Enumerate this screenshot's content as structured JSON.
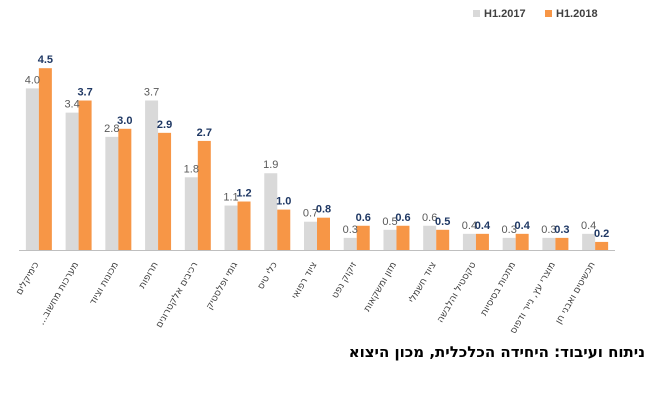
{
  "chart_data": {
    "type": "bar",
    "categories": [
      "כימיקלים",
      "מערכות מחשוב...",
      "מכונות וציוד",
      "תרופות",
      "רכיבים אלקטרונים",
      "גומי ופלסטיק",
      "כלי טיס",
      "ציוד רפואי",
      "זיקוק נפט",
      "מזון ומשקאות",
      "ציוד חשמלי",
      "טקסטיל והלבשה",
      "מתכות בסיסיות",
      "מוצרי עץ, נייר ודפוס",
      "תכשיטים ואבני חן"
    ],
    "series": [
      {
        "name": "H1.2017",
        "color": "#d9d9d9",
        "label_color": "#595959",
        "label_weight": "normal",
        "values": [
          4.0,
          3.4,
          2.8,
          3.7,
          1.8,
          1.1,
          1.9,
          0.7,
          0.3,
          0.5,
          0.6,
          0.4,
          0.3,
          0.3,
          0.4
        ]
      },
      {
        "name": "H1.2018",
        "color": "#f79646",
        "label_color": "#1f3864",
        "label_weight": "bold",
        "values": [
          4.5,
          3.7,
          3.0,
          2.9,
          2.7,
          1.2,
          1.0,
          0.8,
          0.6,
          0.6,
          0.5,
          0.4,
          0.4,
          0.3,
          0.2
        ]
      }
    ],
    "value_labels": [
      [
        "4.0",
        "3.4",
        "2.8",
        "3.7",
        "1.8",
        "1.1",
        "1.9",
        "0.7",
        "0.3",
        "0.5",
        "0.6",
        "0.4",
        "0.3",
        "0.3",
        "0.4"
      ],
      [
        "4.5",
        "3.7",
        "3.0",
        "2.9",
        "2.7",
        "1.2",
        "1.0",
        "0.8",
        "0.6",
        "0.6",
        "0.5",
        "0.4",
        "0.4",
        "0.3",
        "0.2"
      ]
    ],
    "ylim": [
      0,
      4.5
    ],
    "grid": false,
    "legend_position": "top-right",
    "title": "",
    "xlabel": "",
    "ylabel": ""
  },
  "footer": {
    "source_note": "ניתוח ועיבוד: היחידה הכלכלית, מכון היצוא"
  }
}
